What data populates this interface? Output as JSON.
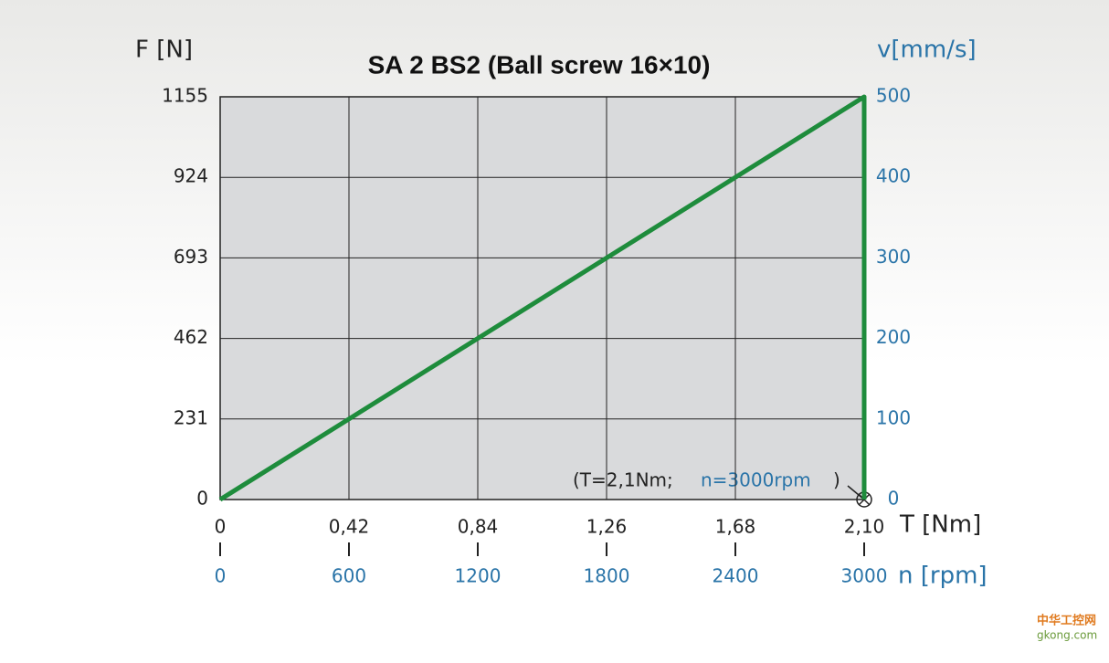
{
  "chart_data": {
    "type": "line",
    "title": "SA 2   BS2 (Ball screw 16×10)",
    "ylabel": "F [N]",
    "y2label": "v[mm/s]",
    "xlabel": "T [Nm]",
    "x2label": "n [rpm]",
    "x": [
      0,
      2.1,
      2.1
    ],
    "series": [
      {
        "color": "#1e8c3c",
        "values": [
          0,
          1155,
          0
        ]
      }
    ],
    "xlim": [
      0,
      2.1
    ],
    "xticks": [
      0,
      {
        "value": 0.42,
        "label": "0,42"
      },
      {
        "value": 0.84,
        "label": "0,84"
      },
      {
        "value": 1.26,
        "label": "1,26"
      },
      {
        "value": 1.68,
        "label": "1,68"
      },
      {
        "value": 2.1,
        "label": "2,10"
      }
    ],
    "x2lim": [
      0,
      3000
    ],
    "x2ticks": [
      0,
      600,
      1200,
      1800,
      2400,
      3000
    ],
    "ylim": [
      0,
      1155
    ],
    "yticks": [
      0,
      231,
      462,
      693,
      924,
      1155
    ],
    "y2lim": [
      0,
      500
    ],
    "y2ticks": [
      0,
      100,
      200,
      300,
      400,
      500
    ],
    "grid": true,
    "annotations": [
      "(T=2,1Nm;",
      "n=3000rpm",
      ")"
    ],
    "watermark": [
      "中华工控网",
      "gkong.com"
    ]
  }
}
